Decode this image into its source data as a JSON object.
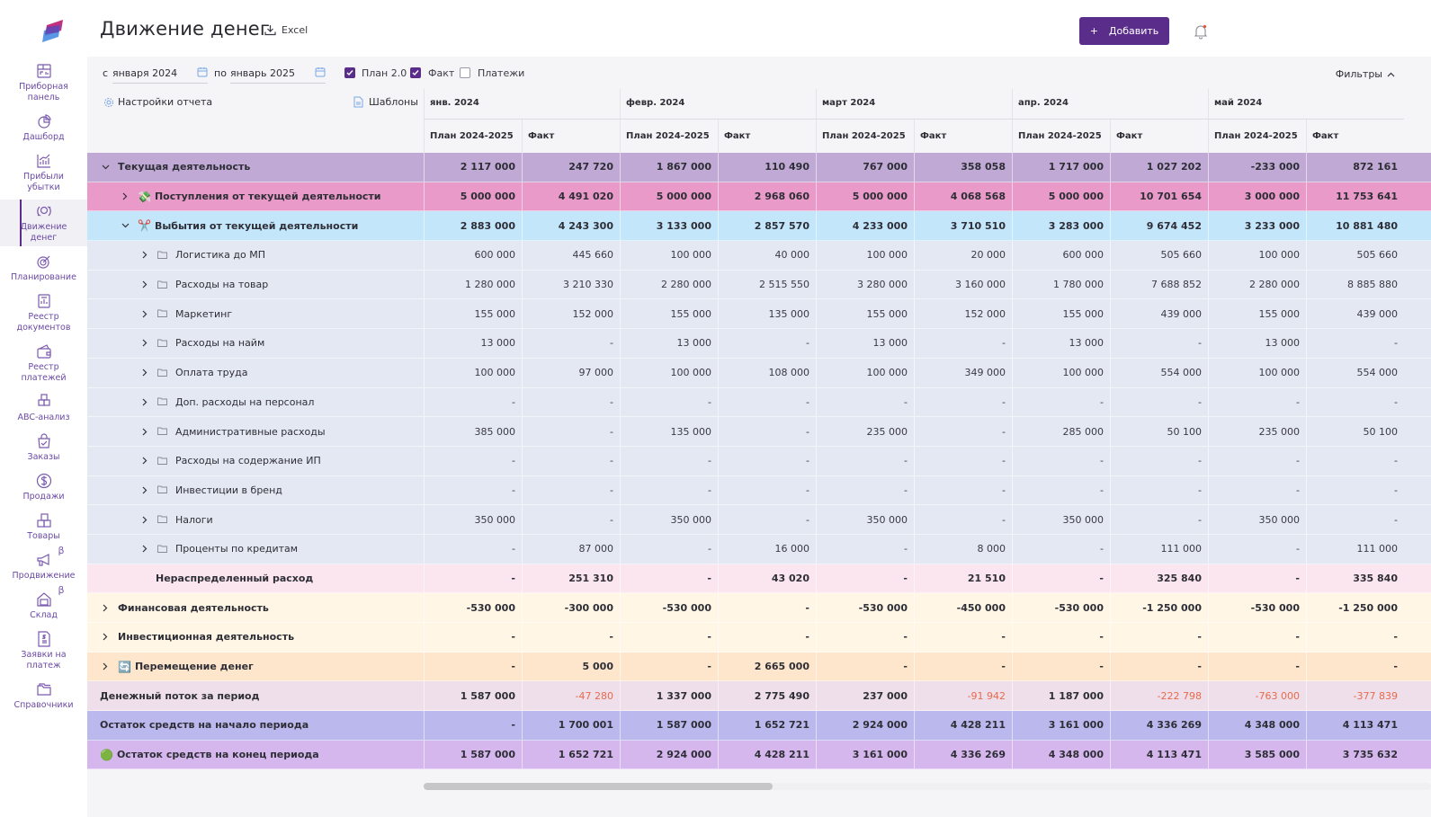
{
  "app": {
    "title": "Движение денег",
    "excel_label": "Excel",
    "add_button": "Добавить",
    "add_icon": "+",
    "accent_color": "#5b2d8a"
  },
  "sidebar": {
    "items": [
      {
        "label": "Приборная панель",
        "icon": "dashboard-panel-icon"
      },
      {
        "label": "Дашборд",
        "icon": "pie-chart-icon"
      },
      {
        "label": "Прибыли убытки",
        "icon": "bar-chart-icon"
      },
      {
        "label": "Движение денег",
        "icon": "money-flow-icon",
        "active": true
      },
      {
        "label": "Планирование",
        "icon": "target-icon"
      },
      {
        "label": "Реестр документов",
        "icon": "documents-icon"
      },
      {
        "label": "Реестр платежей",
        "icon": "wallet-icon"
      },
      {
        "label": "ABC-анализ",
        "icon": "abc-blocks-icon"
      },
      {
        "label": "Заказы",
        "icon": "shopping-bag-icon"
      },
      {
        "label": "Продажи",
        "icon": "dollar-circle-icon"
      },
      {
        "label": "Товары",
        "icon": "boxes-icon"
      },
      {
        "label": "Продвижение",
        "icon": "megaphone-icon",
        "beta": "β"
      },
      {
        "label": "Склад",
        "icon": "warehouse-icon",
        "beta": "β"
      },
      {
        "label": "Заявки на платеж",
        "icon": "payment-request-icon"
      },
      {
        "label": "Справочники",
        "icon": "folder-icon"
      }
    ]
  },
  "filters": {
    "from_label": "с",
    "from_value": "января 2024",
    "to_label": "по",
    "to_value": "январь 2025",
    "checkboxes": [
      {
        "label": "План 2.0",
        "checked": true
      },
      {
        "label": "Факт",
        "checked": true
      },
      {
        "label": "Платежи",
        "checked": false
      }
    ],
    "filters_toggle": "Фильтры",
    "report_settings": "Настройки отчета",
    "templates": "Шаблоны"
  },
  "table": {
    "months": [
      "янв. 2024",
      "февр. 2024",
      "март 2024",
      "апр. 2024",
      "май 2024"
    ],
    "sub_headers": [
      "План 2024-2025",
      "Факт"
    ],
    "rows": [
      {
        "label": "Текущая деятельность",
        "level": 0,
        "expander": "down",
        "style": "current",
        "bold": true,
        "values": [
          "2 117 000",
          "247 720",
          "1 867 000",
          "110 490",
          "767 000",
          "358 058",
          "1 717 000",
          "1 027 202",
          "-233 000",
          "872 161"
        ]
      },
      {
        "label": "Поступления от текущей деятельности",
        "level": 1,
        "expander": "right",
        "emoji": "💸",
        "style": "income",
        "bold": true,
        "values": [
          "5 000 000",
          "4 491 020",
          "5 000 000",
          "2 968 060",
          "5 000 000",
          "4 068 568",
          "5 000 000",
          "10 701 654",
          "3 000 000",
          "11 753 641"
        ]
      },
      {
        "label": "Выбытия от текущей деятельности",
        "level": 1,
        "expander": "down",
        "emoji": "✂️",
        "style": "outflow",
        "bold": true,
        "values": [
          "2 883 000",
          "4 243 300",
          "3 133 000",
          "2 857 570",
          "4 233 000",
          "3 710 510",
          "3 283 000",
          "9 674 452",
          "3 233 000",
          "10 881 480"
        ]
      },
      {
        "label": "Логистика до МП",
        "level": 2,
        "expander": "right",
        "folder": true,
        "style": "sub",
        "values": [
          "600 000",
          "445 660",
          "100 000",
          "40 000",
          "100 000",
          "20 000",
          "600 000",
          "505 660",
          "100 000",
          "505 660"
        ]
      },
      {
        "label": "Расходы на товар",
        "level": 2,
        "expander": "right",
        "folder": true,
        "style": "sub",
        "values": [
          "1 280 000",
          "3 210 330",
          "2 280 000",
          "2 515 550",
          "3 280 000",
          "3 160 000",
          "1 780 000",
          "7 688 852",
          "2 280 000",
          "8 885 880"
        ]
      },
      {
        "label": "Маркетинг",
        "level": 2,
        "expander": "right",
        "folder": true,
        "style": "sub",
        "values": [
          "155 000",
          "152 000",
          "155 000",
          "135 000",
          "155 000",
          "152 000",
          "155 000",
          "439 000",
          "155 000",
          "439 000"
        ]
      },
      {
        "label": "Расходы на найм",
        "level": 2,
        "expander": "right",
        "folder": true,
        "style": "sub",
        "values": [
          "13 000",
          "-",
          "13 000",
          "-",
          "13 000",
          "-",
          "13 000",
          "-",
          "13 000",
          "-"
        ]
      },
      {
        "label": "Оплата труда",
        "level": 2,
        "expander": "right",
        "folder": true,
        "style": "sub",
        "values": [
          "100 000",
          "97 000",
          "100 000",
          "108 000",
          "100 000",
          "349 000",
          "100 000",
          "554 000",
          "100 000",
          "554 000"
        ]
      },
      {
        "label": "Доп. расходы на персонал",
        "level": 2,
        "expander": "right",
        "folder": true,
        "style": "sub",
        "values": [
          "-",
          "-",
          "-",
          "-",
          "-",
          "-",
          "-",
          "-",
          "-",
          "-"
        ]
      },
      {
        "label": "Административные расходы",
        "level": 2,
        "expander": "right",
        "folder": true,
        "style": "sub",
        "values": [
          "385 000",
          "-",
          "135 000",
          "-",
          "235 000",
          "-",
          "285 000",
          "50 100",
          "235 000",
          "50 100"
        ]
      },
      {
        "label": "Расходы на содержание ИП",
        "level": 2,
        "expander": "right",
        "folder": true,
        "style": "sub",
        "values": [
          "-",
          "-",
          "-",
          "-",
          "-",
          "-",
          "-",
          "-",
          "-",
          "-"
        ]
      },
      {
        "label": "Инвестиции в бренд",
        "level": 2,
        "expander": "right",
        "folder": true,
        "style": "sub",
        "values": [
          "-",
          "-",
          "-",
          "-",
          "-",
          "-",
          "-",
          "-",
          "-",
          "-"
        ]
      },
      {
        "label": "Налоги",
        "level": 2,
        "expander": "right",
        "folder": true,
        "style": "sub",
        "values": [
          "350 000",
          "-",
          "350 000",
          "-",
          "350 000",
          "-",
          "350 000",
          "-",
          "350 000",
          "-"
        ]
      },
      {
        "label": "Проценты по кредитам",
        "level": 2,
        "expander": "right",
        "folder": true,
        "style": "sub",
        "values": [
          "-",
          "87 000",
          "-",
          "16 000",
          "-",
          "8 000",
          "-",
          "111 000",
          "-",
          "111 000"
        ]
      },
      {
        "label": "Нераспределенный расход",
        "level": 3,
        "style": "undist",
        "bold": true,
        "values": [
          "-",
          "251 310",
          "-",
          "43 020",
          "-",
          "21 510",
          "-",
          "325 840",
          "-",
          "335 840"
        ]
      },
      {
        "label": "Финансовая деятельность",
        "level": 0,
        "expander": "right",
        "style": "fin",
        "bold": true,
        "values": [
          "-530 000",
          "-300 000",
          "-530 000",
          "-",
          "-530 000",
          "-450 000",
          "-530 000",
          "-1 250 000",
          "-530 000",
          "-1 250 000"
        ]
      },
      {
        "label": "Инвестиционная деятельность",
        "level": 0,
        "expander": "right",
        "style": "fin",
        "bold": true,
        "values": [
          "-",
          "-",
          "-",
          "-",
          "-",
          "-",
          "-",
          "-",
          "-",
          "-"
        ]
      },
      {
        "label": "Перемещение денег",
        "level": 0,
        "expander": "right",
        "emoji": "🔄",
        "style": "move",
        "bold": true,
        "values": [
          "-",
          "5 000",
          "-",
          "2 665 000",
          "-",
          "-",
          "-",
          "-",
          "-",
          "-"
        ]
      },
      {
        "label": "Денежный поток за период",
        "level": 0,
        "style": "flow",
        "bold": true,
        "values": [
          "1 587 000",
          "-47 280",
          "1 337 000",
          "2 775 490",
          "237 000",
          "-91 942",
          "1 187 000",
          "-222 798",
          "-763 000",
          "-377 839"
        ]
      },
      {
        "label": "Остаток средств на начало периода",
        "level": 0,
        "style": "start",
        "bold": true,
        "values": [
          "-",
          "1 700 001",
          "1 587 000",
          "1 652 721",
          "2 924 000",
          "4 428 211",
          "3 161 000",
          "4 336 269",
          "4 348 000",
          "4 113 471"
        ]
      },
      {
        "label": "Остаток средств на конец периода",
        "level": 0,
        "emoji": "🟢",
        "style": "end",
        "bold": true,
        "values": [
          "1 587 000",
          "1 652 721",
          "2 924 000",
          "4 428 211",
          "3 161 000",
          "4 336 269",
          "4 348 000",
          "4 113 471",
          "3 585 000",
          "3 735 632"
        ]
      }
    ]
  }
}
